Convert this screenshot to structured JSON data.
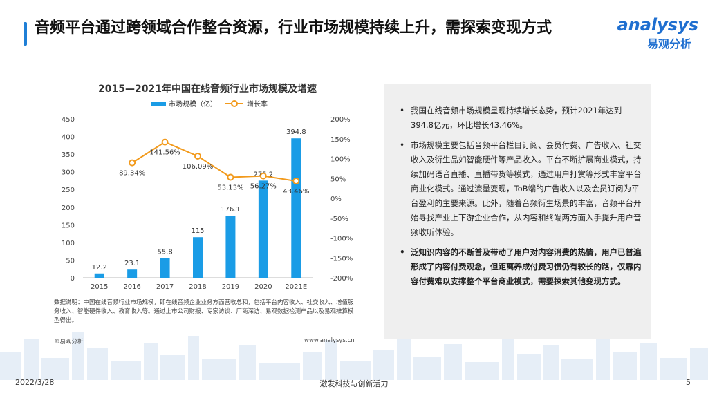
{
  "header": {
    "title": "音频平台通过跨领域合作整合资源，行业市场规模持续上升，需探索变现方式",
    "logo_en": "analysys",
    "logo_cn": "易观分析"
  },
  "chart_data": {
    "type": "bar",
    "title": "2015—2021年中国在线音频行业市场规模及增速",
    "categories": [
      "2015",
      "2016",
      "2017",
      "2018",
      "2019",
      "2020",
      "2021E"
    ],
    "series": [
      {
        "name": "市场规模（亿）",
        "type": "bar",
        "values": [
          12.2,
          23.1,
          55.8,
          115,
          176.1,
          275.2,
          394.8
        ],
        "labels": [
          "12.2",
          "23.1",
          "55.8",
          "115",
          "176.1",
          "275.2",
          "394.8"
        ],
        "color": "#1a9ce6"
      },
      {
        "name": "增长率",
        "type": "line",
        "values": [
          null,
          89.34,
          141.56,
          106.09,
          53.13,
          56.27,
          43.46
        ],
        "labels": [
          "",
          "89.34%",
          "141.56%",
          "106.09%",
          "53.13%",
          "56.27%",
          "43.46%"
        ],
        "color": "#f29a1c"
      }
    ],
    "y_left": {
      "range": [
        0,
        450
      ],
      "ticks": [
        "0",
        "50",
        "100",
        "150",
        "200",
        "250",
        "300",
        "350",
        "400",
        "450"
      ]
    },
    "y_right": {
      "range": [
        -200,
        200
      ],
      "ticks": [
        "-200%",
        "-150%",
        "-100%",
        "-50%",
        "0%",
        "50%",
        "100%",
        "150%",
        "200%"
      ]
    },
    "grid": false,
    "legend": "top-left"
  },
  "source": {
    "note": "数据说明：中国在线音频行业市场规模，即在线音频企业业务方面营收总和，包括平台内容收入、社交收入、增值服务收入、智能硬件收入、教育收入等。通过上市公司财报、专家访谈、厂商深访、易观数据检测产品以及易观推算模型得出。",
    "copyright": "©易观分析",
    "site": "www.analysys.cn"
  },
  "insights": [
    {
      "text": "我国在线音频市场规模呈现持续增长态势，预计2021年达到394.8亿元，环比增长43.46%。",
      "bold": false
    },
    {
      "text": "市场规模主要包括音频平台栏目订阅、会员付费、广告收入、社交收入及衍生品如智能硬件等产品收入。平台不断扩展商业模式，持续加码语音直播、直播带货等模式，通过用户打赏等形式丰富平台商业化模式。通过流量变现，ToB端的广告收入以及会员订阅为平台盈利的主要来源。此外，随着音频衍生场景的丰富，音频平台开始寻找产业上下游企业合作，从内容和终端两方面入手提升用户音频收听体验。",
      "bold": false
    },
    {
      "text": "泛知识内容的不断普及带动了用户对内容消费的热情，用户已普遍形成了内容付费观念，但距离养成付费习惯仍有较长的路，仅靠内容付费难以支撑整个平台商业模式，需要探索其他变现方式。",
      "bold": true
    }
  ],
  "footer": {
    "date": "2022/3/28",
    "slogan": "激发科技与创新活力",
    "page": "5"
  },
  "bullet_glyph": "•"
}
